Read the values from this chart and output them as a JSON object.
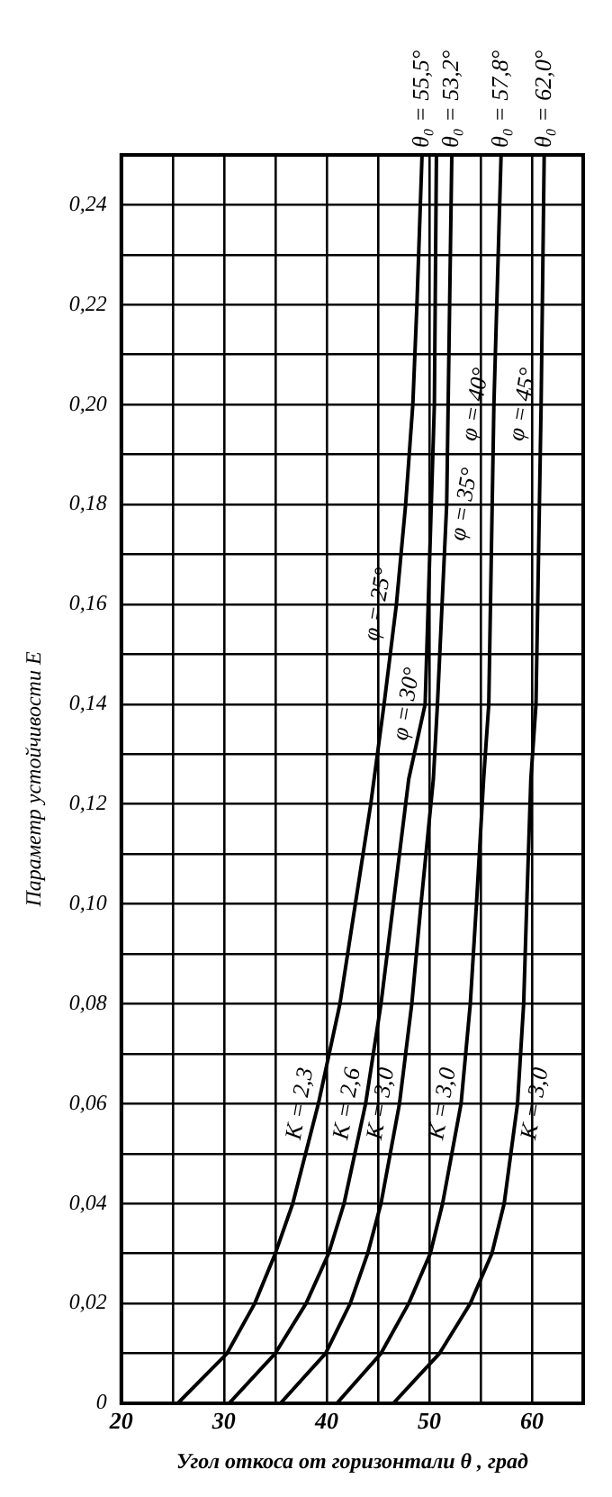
{
  "chart_data": {
    "type": "line",
    "xlabel": "Угол откоса от горизонтали θ , град",
    "ylabel": "Параметр устойчивости E",
    "xlim": [
      20,
      65
    ],
    "xticks": [
      20,
      {
        "value": 25,
        "label": null
      },
      30,
      {
        "value": 35,
        "label": null
      },
      40,
      {
        "value": 45,
        "label": null
      },
      50,
      {
        "value": 55,
        "label": null
      },
      60,
      {
        "value": 65,
        "label": null
      }
    ],
    "ylim": [
      0,
      0.25
    ],
    "yticks": [
      0,
      {
        "value": 0.01,
        "label": null
      },
      {
        "value": 0.02,
        "label": "0,02"
      },
      {
        "value": 0.03,
        "label": null
      },
      {
        "value": 0.04,
        "label": "0,04"
      },
      {
        "value": 0.05,
        "label": null
      },
      {
        "value": 0.06,
        "label": "0,06"
      },
      {
        "value": 0.07,
        "label": null
      },
      {
        "value": 0.08,
        "label": "0,08"
      },
      {
        "value": 0.09,
        "label": null
      },
      {
        "value": 0.1,
        "label": "0,10"
      },
      {
        "value": 0.11,
        "label": null
      },
      {
        "value": 0.12,
        "label": "0,12"
      },
      {
        "value": 0.13,
        "label": null
      },
      {
        "value": 0.14,
        "label": "0,14"
      },
      {
        "value": 0.15,
        "label": null
      },
      {
        "value": 0.16,
        "label": "0,16"
      },
      {
        "value": 0.17,
        "label": null
      },
      {
        "value": 0.18,
        "label": "0,18"
      },
      {
        "value": 0.19,
        "label": null
      },
      {
        "value": 0.2,
        "label": "0,20"
      },
      {
        "value": 0.21,
        "label": null
      },
      {
        "value": 0.22,
        "label": "0,22"
      },
      {
        "value": 0.23,
        "label": null
      },
      {
        "value": 0.24,
        "label": "0,24"
      },
      {
        "value": 0.25,
        "label": null
      }
    ],
    "grid": true,
    "legend": false,
    "marker": "none",
    "line_style": "solid",
    "series": [
      {
        "color": "#000000",
        "x": [
          25.5,
          30.3,
          33,
          35,
          36.7,
          39.2,
          41.3,
          42.8,
          44.3,
          45.6,
          46.8,
          47.7,
          48.4,
          48.8,
          49.3
        ],
        "values": [
          0,
          0.01,
          0.02,
          0.03,
          0.04,
          0.06,
          0.08,
          0.1,
          0.12,
          0.14,
          0.16,
          0.18,
          0.2,
          0.22,
          0.25
        ]
      },
      {
        "color": "#000000",
        "x": [
          30.5,
          35,
          38,
          40.2,
          41.7,
          43.8,
          45.3,
          46.5,
          48,
          49.6,
          50.2,
          50.5,
          50.7
        ],
        "values": [
          0,
          0.01,
          0.02,
          0.03,
          0.04,
          0.06,
          0.08,
          0.1,
          0.125,
          0.14,
          0.18,
          0.2,
          0.25
        ]
      },
      {
        "color": "#000000",
        "x": [
          35.5,
          39.9,
          42.3,
          44,
          45.3,
          47.1,
          48.3,
          49.2,
          50.4,
          50.8,
          51.7,
          52.2
        ],
        "values": [
          0,
          0.01,
          0.02,
          0.03,
          0.04,
          0.06,
          0.08,
          0.1,
          0.125,
          0.14,
          0.18,
          0.25
        ]
      },
      {
        "color": "#000000",
        "x": [
          41,
          45.3,
          48,
          50.1,
          51.3,
          53.1,
          54,
          54.6,
          55.3,
          55.8,
          56.3,
          57
        ],
        "values": [
          0,
          0.01,
          0.02,
          0.03,
          0.04,
          0.06,
          0.08,
          0.1,
          0.125,
          0.14,
          0.2,
          0.25
        ]
      },
      {
        "color": "#000000",
        "x": [
          46.5,
          51,
          54,
          56.1,
          57.3,
          58.6,
          59.2,
          59.5,
          59.9,
          60.4,
          60.9,
          61.2
        ],
        "values": [
          0,
          0.01,
          0.02,
          0.03,
          0.04,
          0.06,
          0.08,
          0.1,
          0.125,
          0.14,
          0.2,
          0.25
        ]
      }
    ],
    "annotations": [
      {
        "text": "K = 2,3",
        "x": 39.2,
        "y": 0.06
      },
      {
        "text": "K = 2,6",
        "x": 43.8,
        "y": 0.06
      },
      {
        "text": "K = 3,0",
        "x": 47.1,
        "y": 0.06
      },
      {
        "text": "K = 3,0",
        "x": 53.1,
        "y": 0.06
      },
      {
        "text": "K = 3,0",
        "x": 58.6,
        "y": 0.06
      },
      {
        "text": "φ = 25°",
        "x": 46.8,
        "y": 0.16
      },
      {
        "text": "φ = 30°",
        "x": 49.6,
        "y": 0.14
      },
      {
        "text": "φ = 35°",
        "x": 51.7,
        "y": 0.18
      },
      {
        "text": "φ = 40°",
        "x": 56.3,
        "y": 0.2
      },
      {
        "text": "φ = 45°",
        "x": 60.9,
        "y": 0.2
      },
      {
        "text": "θ₀ = 55,5°",
        "x": 49.3,
        "y": 0.25
      },
      {
        "text": "θ₀ = 53,2°",
        "x": 52.2,
        "y": 0.25
      },
      {
        "text": "θ₀ = 57,8°",
        "x": 57,
        "y": 0.25
      },
      {
        "text": "θ₀ = 62,0°",
        "x": 61.2,
        "y": 0.25
      }
    ]
  }
}
